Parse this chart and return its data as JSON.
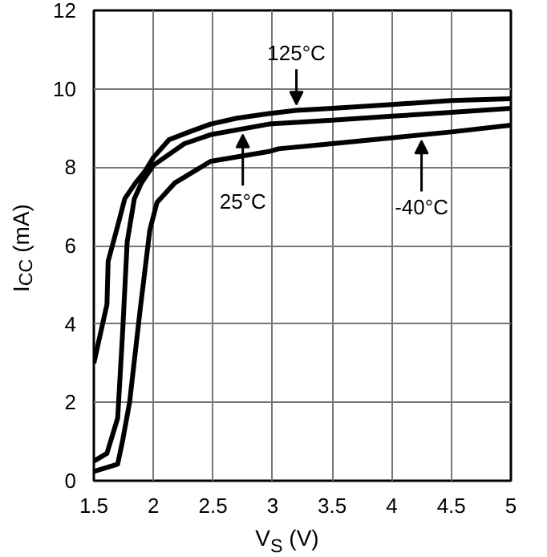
{
  "chart_data": {
    "type": "line",
    "xlabel": "V$_{S}$ (V)",
    "ylabel": "I$_{CC}$ (mA)",
    "xlim": [
      1.5,
      5
    ],
    "xticks": [
      1.5,
      2,
      2.5,
      3,
      3.5,
      4,
      4.5,
      5
    ],
    "ylim": [
      0,
      12
    ],
    "yticks": [
      0,
      2,
      4,
      6,
      8,
      10,
      12
    ],
    "grid": true,
    "line_style": "solid",
    "marker": "none",
    "series": [
      {
        "color": "#000000",
        "x": [
          1.5,
          1.61,
          1.62,
          1.7,
          1.76,
          1.85,
          1.93,
          2.0,
          2.13,
          2.3,
          2.48,
          2.7,
          2.97,
          3.2,
          3.5,
          4.0,
          4.5,
          5.0
        ],
        "values": [
          3.0,
          4.5,
          5.6,
          6.5,
          7.2,
          7.6,
          7.9,
          8.25,
          8.7,
          8.9,
          9.1,
          9.25,
          9.37,
          9.45,
          9.5,
          9.6,
          9.7,
          9.75
        ]
      },
      {
        "color": "#000000",
        "x": [
          1.5,
          1.61,
          1.7,
          1.74,
          1.78,
          1.84,
          1.9,
          2.0,
          2.26,
          2.48,
          2.97,
          3.5,
          4.0,
          4.5,
          5.0
        ],
        "values": [
          0.5,
          0.7,
          1.6,
          3.7,
          6.1,
          7.2,
          7.6,
          8.05,
          8.6,
          8.83,
          9.1,
          9.2,
          9.3,
          9.4,
          9.5
        ]
      },
      {
        "color": "#000000",
        "x": [
          1.5,
          1.7,
          1.74,
          1.8,
          1.89,
          1.97,
          2.03,
          2.18,
          2.48,
          2.97,
          3.05,
          3.5,
          4.0,
          4.5,
          5.0
        ],
        "values": [
          0.24,
          0.42,
          1.0,
          2.0,
          4.4,
          6.4,
          7.1,
          7.6,
          8.15,
          8.4,
          8.47,
          8.6,
          8.75,
          8.9,
          9.07
        ]
      }
    ],
    "annotations": [
      {
        "text": "125°C",
        "x": 3.2,
        "y": 9.45
      },
      {
        "text": "25°C",
        "x": 2.75,
        "y": 8.98
      },
      {
        "text": "-40°C",
        "x": 4.25,
        "y": 8.83
      }
    ]
  }
}
